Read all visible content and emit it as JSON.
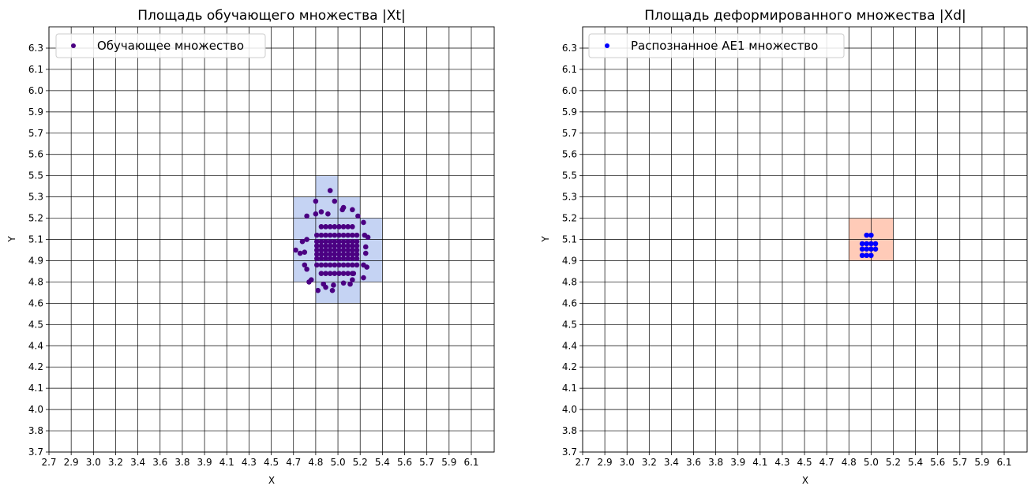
{
  "chart_data": [
    {
      "type": "scatter",
      "title": "Площадь обучающего множества |Xt|",
      "xlabel": "X",
      "ylabel": "Y",
      "xticks": [
        "2.7",
        "2.9",
        "3.0",
        "3.2",
        "3.4",
        "3.6",
        "3.8",
        "3.9",
        "4.1",
        "4.3",
        "4.5",
        "4.7",
        "4.8",
        "5.0",
        "5.2",
        "5.4",
        "5.6",
        "5.7",
        "5.9",
        "6.1"
      ],
      "yticks": [
        "3.7",
        "3.8",
        "4.0",
        "4.1",
        "4.2",
        "4.4",
        "4.5",
        "4.6",
        "4.8",
        "4.9",
        "5.1",
        "5.2",
        "5.3",
        "5.5",
        "5.6",
        "5.7",
        "5.9",
        "6.0",
        "6.1",
        "6.3"
      ],
      "grid": true,
      "legend": {
        "position": "top-left",
        "label": "Обучающее множество"
      },
      "point_color": "#4b0082",
      "region_color": "#c5d3f3",
      "regions": [
        {
          "x": [
            4.7,
            4.8
          ],
          "y": [
            4.8,
            5.3
          ]
        },
        {
          "x": [
            4.8,
            5.0
          ],
          "y": [
            4.6,
            5.5
          ]
        },
        {
          "x": [
            5.0,
            5.2
          ],
          "y": [
            4.6,
            5.3
          ]
        },
        {
          "x": [
            5.2,
            5.4
          ],
          "y": [
            4.8,
            5.2
          ]
        }
      ],
      "series": [
        {
          "name": "Обучающее множество",
          "points": [
            [
              4.85,
              4.84
            ],
            [
              4.89,
              4.84
            ],
            [
              4.93,
              4.84
            ],
            [
              4.97,
              4.84
            ],
            [
              5.01,
              4.84
            ],
            [
              5.05,
              4.84
            ],
            [
              5.09,
              4.84
            ],
            [
              5.13,
              4.84
            ],
            [
              4.81,
              4.88
            ],
            [
              4.85,
              4.88
            ],
            [
              4.89,
              4.88
            ],
            [
              4.93,
              4.88
            ],
            [
              4.97,
              4.88
            ],
            [
              5.01,
              4.88
            ],
            [
              5.05,
              4.88
            ],
            [
              5.09,
              4.88
            ],
            [
              5.13,
              4.88
            ],
            [
              5.17,
              4.88
            ],
            [
              4.81,
              4.92
            ],
            [
              4.85,
              4.92
            ],
            [
              4.89,
              4.92
            ],
            [
              4.93,
              4.92
            ],
            [
              4.97,
              4.92
            ],
            [
              5.01,
              4.92
            ],
            [
              5.05,
              4.92
            ],
            [
              5.09,
              4.92
            ],
            [
              5.13,
              4.92
            ],
            [
              5.17,
              4.92
            ],
            [
              4.81,
              4.96
            ],
            [
              4.85,
              4.96
            ],
            [
              4.89,
              4.96
            ],
            [
              4.93,
              4.96
            ],
            [
              4.97,
              4.96
            ],
            [
              5.01,
              4.96
            ],
            [
              5.05,
              4.96
            ],
            [
              5.09,
              4.96
            ],
            [
              5.13,
              4.96
            ],
            [
              5.17,
              4.96
            ],
            [
              4.81,
              5.0
            ],
            [
              4.85,
              5.0
            ],
            [
              4.89,
              5.0
            ],
            [
              4.93,
              5.0
            ],
            [
              4.97,
              5.0
            ],
            [
              5.01,
              5.0
            ],
            [
              5.05,
              5.0
            ],
            [
              5.09,
              5.0
            ],
            [
              5.13,
              5.0
            ],
            [
              5.17,
              5.0
            ],
            [
              4.81,
              5.04
            ],
            [
              4.85,
              5.04
            ],
            [
              4.89,
              5.04
            ],
            [
              4.93,
              5.04
            ],
            [
              4.97,
              5.04
            ],
            [
              5.01,
              5.04
            ],
            [
              5.05,
              5.04
            ],
            [
              5.09,
              5.04
            ],
            [
              5.13,
              5.04
            ],
            [
              5.17,
              5.04
            ],
            [
              4.81,
              5.08
            ],
            [
              4.85,
              5.08
            ],
            [
              4.89,
              5.08
            ],
            [
              4.93,
              5.08
            ],
            [
              4.97,
              5.08
            ],
            [
              5.01,
              5.08
            ],
            [
              5.05,
              5.08
            ],
            [
              5.09,
              5.08
            ],
            [
              5.13,
              5.08
            ],
            [
              5.17,
              5.08
            ],
            [
              4.81,
              5.12
            ],
            [
              4.85,
              5.12
            ],
            [
              4.89,
              5.12
            ],
            [
              4.93,
              5.12
            ],
            [
              4.97,
              5.12
            ],
            [
              5.01,
              5.12
            ],
            [
              5.05,
              5.12
            ],
            [
              5.09,
              5.12
            ],
            [
              5.13,
              5.12
            ],
            [
              5.17,
              5.12
            ],
            [
              4.85,
              5.16
            ],
            [
              4.89,
              5.16
            ],
            [
              4.93,
              5.16
            ],
            [
              4.97,
              5.16
            ],
            [
              5.01,
              5.16
            ],
            [
              5.05,
              5.16
            ],
            [
              5.09,
              5.16
            ],
            [
              5.13,
              5.16
            ],
            [
              4.8,
              5.28
            ],
            [
              4.93,
              5.36
            ],
            [
              4.97,
              5.28
            ],
            [
              4.76,
              5.21
            ],
            [
              5.05,
              5.25
            ],
            [
              5.13,
              5.24
            ],
            [
              5.23,
              5.18
            ],
            [
              5.27,
              5.11
            ],
            [
              5.24,
              5.12
            ],
            [
              4.71,
              5.0
            ],
            [
              4.73,
              4.97
            ],
            [
              4.75,
              4.98
            ],
            [
              4.74,
              5.08
            ],
            [
              4.76,
              5.1
            ],
            [
              5.25,
              5.03
            ],
            [
              5.25,
              4.97
            ],
            [
              5.26,
              4.87
            ],
            [
              5.23,
              4.88
            ],
            [
              5.14,
              4.84
            ],
            [
              5.23,
              4.82
            ],
            [
              5.13,
              4.81
            ],
            [
              5.05,
              4.79
            ],
            [
              5.11,
              4.78
            ],
            [
              4.96,
              4.77
            ],
            [
              4.87,
              4.78
            ],
            [
              4.89,
              4.75
            ],
            [
              4.82,
              4.72
            ],
            [
              4.95,
              4.72
            ],
            [
              4.77,
              4.8
            ],
            [
              4.78,
              4.81
            ],
            [
              4.75,
              4.88
            ],
            [
              4.76,
              4.86
            ],
            [
              4.8,
              5.22
            ],
            [
              4.85,
              5.23
            ],
            [
              4.91,
              5.22
            ],
            [
              5.04,
              5.24
            ],
            [
              5.18,
              5.21
            ]
          ]
        }
      ]
    },
    {
      "type": "scatter",
      "title": "Площадь деформированного множества |Xd|",
      "xlabel": "X",
      "ylabel": "Y",
      "xticks": [
        "2.7",
        "2.9",
        "3.0",
        "3.2",
        "3.4",
        "3.6",
        "3.8",
        "3.9",
        "4.1",
        "4.3",
        "4.5",
        "4.7",
        "4.8",
        "5.0",
        "5.2",
        "5.4",
        "5.6",
        "5.7",
        "5.9",
        "6.1"
      ],
      "yticks": [
        "3.7",
        "3.8",
        "4.0",
        "4.1",
        "4.2",
        "4.4",
        "4.5",
        "4.6",
        "4.8",
        "4.9",
        "5.1",
        "5.2",
        "5.3",
        "5.5",
        "5.6",
        "5.7",
        "5.9",
        "6.0",
        "6.1",
        "6.3"
      ],
      "grid": true,
      "legend": {
        "position": "top-left",
        "label": "Распознанное AE1 множество"
      },
      "point_color": "#0000ff",
      "region_color": "#ffcbb8",
      "regions": [
        {
          "x": [
            4.8,
            5.2
          ],
          "y": [
            4.9,
            5.2
          ]
        }
      ],
      "series": [
        {
          "name": "Распознанное AE1 множество",
          "points": [
            [
              4.96,
              5.12
            ],
            [
              5.0,
              5.12
            ],
            [
              4.92,
              5.06
            ],
            [
              4.96,
              5.06
            ],
            [
              5.0,
              5.06
            ],
            [
              5.04,
              5.06
            ],
            [
              4.92,
              5.01
            ],
            [
              4.96,
              5.01
            ],
            [
              5.0,
              5.01
            ],
            [
              5.04,
              5.01
            ],
            [
              4.92,
              4.95
            ],
            [
              4.96,
              4.95
            ],
            [
              5.0,
              4.95
            ]
          ]
        }
      ]
    }
  ]
}
